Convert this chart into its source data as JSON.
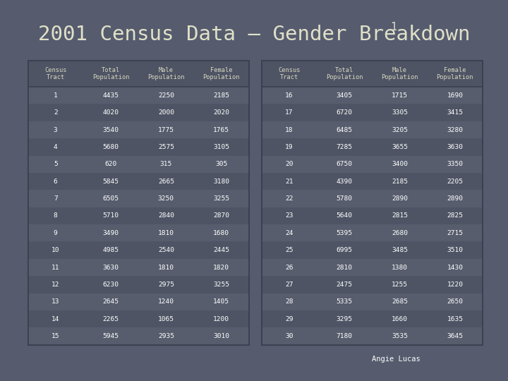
{
  "title": "2001 Census Data – Gender Breakdown",
  "title_superscript": "1",
  "background_color": "#565c6e",
  "table_bg_dark": "#4e5464",
  "table_bg_light": "#575d6d",
  "table_border": "#3a3f4e",
  "header_text_color": "#d8d8c0",
  "data_text_color": "#ffffff",
  "font_color_title": "#e0e0c8",
  "credit": "Angie Lucas",
  "left_table": {
    "headers": [
      "Census\nTract",
      "Total\nPopulation",
      "Male\nPopulation",
      "Female\nPopulation"
    ],
    "rows": [
      [
        1,
        4435,
        2250,
        2185
      ],
      [
        2,
        4020,
        2000,
        2020
      ],
      [
        3,
        3540,
        1775,
        1765
      ],
      [
        4,
        5680,
        2575,
        3105
      ],
      [
        5,
        620,
        315,
        305
      ],
      [
        6,
        5845,
        2665,
        3180
      ],
      [
        7,
        6505,
        3250,
        3255
      ],
      [
        8,
        5710,
        2840,
        2870
      ],
      [
        9,
        3490,
        1810,
        1680
      ],
      [
        10,
        4985,
        2540,
        2445
      ],
      [
        11,
        3630,
        1810,
        1820
      ],
      [
        12,
        6230,
        2975,
        3255
      ],
      [
        13,
        2645,
        1240,
        1405
      ],
      [
        14,
        2265,
        1065,
        1200
      ],
      [
        15,
        5945,
        2935,
        3010
      ]
    ]
  },
  "right_table": {
    "headers": [
      "Census\nTract",
      "Total\nPopulation",
      "Male\nPopulation",
      "Female\nPopulation"
    ],
    "rows": [
      [
        16,
        3405,
        1715,
        1690
      ],
      [
        17,
        6720,
        3305,
        3415
      ],
      [
        18,
        6485,
        3205,
        3280
      ],
      [
        19,
        7285,
        3655,
        3630
      ],
      [
        20,
        6750,
        3400,
        3350
      ],
      [
        21,
        4390,
        2185,
        2205
      ],
      [
        22,
        5780,
        2890,
        2890
      ],
      [
        23,
        5640,
        2815,
        2825
      ],
      [
        24,
        5395,
        2680,
        2715
      ],
      [
        25,
        6995,
        3485,
        3510
      ],
      [
        26,
        2810,
        1380,
        1430
      ],
      [
        27,
        2475,
        1255,
        1220
      ],
      [
        28,
        5335,
        2685,
        2650
      ],
      [
        29,
        3295,
        1660,
        1635
      ],
      [
        30,
        7180,
        3535,
        3645
      ]
    ]
  }
}
